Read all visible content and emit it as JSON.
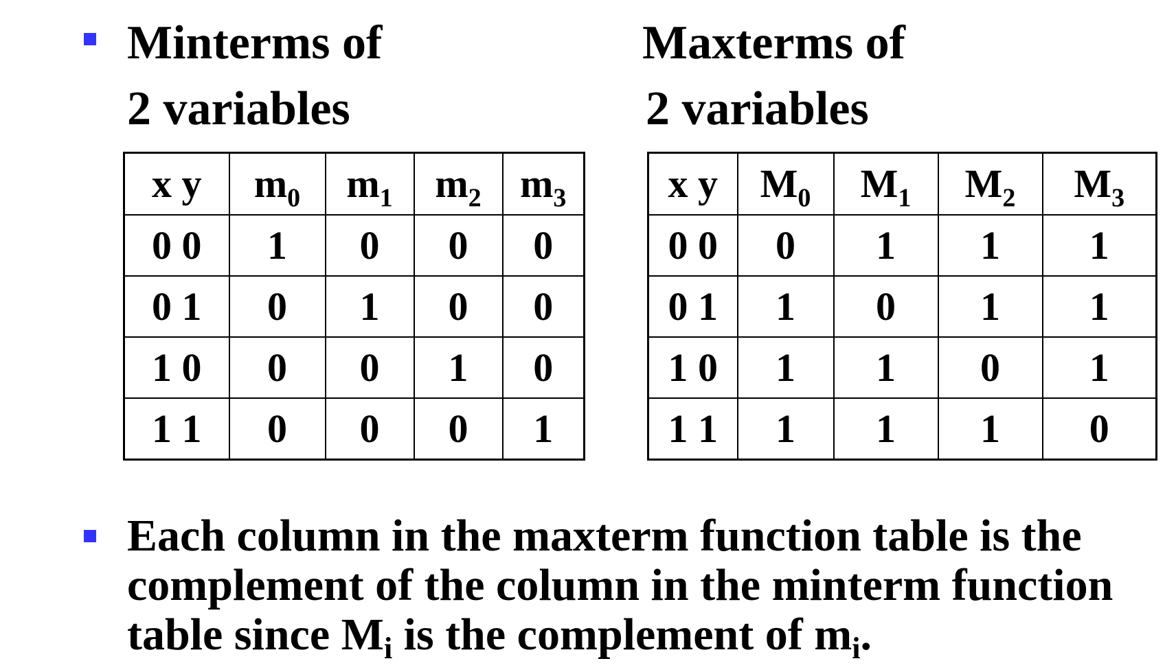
{
  "accent_color": "#3333ff",
  "minterms": {
    "heading_line1": "Minterms of",
    "heading_line2": "2 variables",
    "header": [
      {
        "base": "x y",
        "sub": ""
      },
      {
        "base": "m",
        "sub": "0"
      },
      {
        "base": "m",
        "sub": "1"
      },
      {
        "base": "m",
        "sub": "2"
      },
      {
        "base": "m",
        "sub": "3"
      }
    ],
    "rows": [
      [
        "0 0",
        "1",
        "0",
        "0",
        "0"
      ],
      [
        "0 1",
        "0",
        "1",
        "0",
        "0"
      ],
      [
        "1 0",
        "0",
        "0",
        "1",
        "0"
      ],
      [
        "1 1",
        "0",
        "0",
        "0",
        "1"
      ]
    ]
  },
  "maxterms": {
    "heading_line1": "Maxterms of",
    "heading_line2": "2 variables",
    "header": [
      {
        "base": "x y",
        "sub": ""
      },
      {
        "base": "M",
        "sub": "0"
      },
      {
        "base": "M",
        "sub": "1"
      },
      {
        "base": "M",
        "sub": "2"
      },
      {
        "base": "M",
        "sub": "3"
      }
    ],
    "rows": [
      [
        "0 0",
        "0",
        "1",
        "1",
        "1"
      ],
      [
        "0 1",
        "1",
        "0",
        "1",
        "1"
      ],
      [
        "1 0",
        "1",
        "1",
        "0",
        "1"
      ],
      [
        "1 1",
        "1",
        "1",
        "1",
        "0"
      ]
    ]
  },
  "note": {
    "part1": "Each column in the maxterm function table is the complement of the column in the minterm function table since M",
    "sub1": "i",
    "part2": " is the complement of m",
    "sub2": "i",
    "part3": "."
  }
}
